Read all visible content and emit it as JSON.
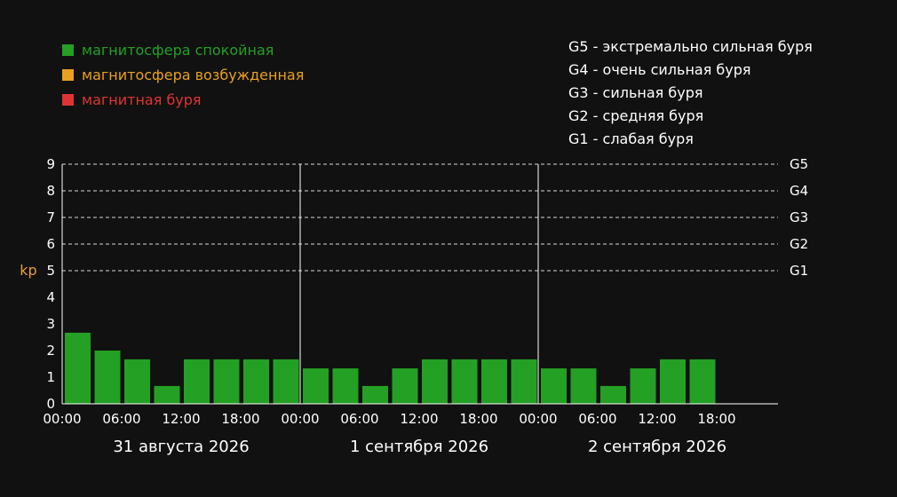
{
  "legend": [
    {
      "label": "магнитосфера спокойная",
      "color": "#24a024"
    },
    {
      "label": "магнитосфера возбужденная",
      "color": "#e8a020"
    },
    {
      "label": "магнитная буря",
      "color": "#e03434"
    }
  ],
  "storm_levels": [
    "G5 - экстремально сильная буря",
    "G4 - очень сильная буря",
    "G3 - сильная буря",
    "G2 - средняя буря",
    "G1 - слабая буря"
  ],
  "chart_data": {
    "type": "bar",
    "ylabel": "kp",
    "ylim": [
      0,
      9
    ],
    "yticks": [
      "0",
      "1",
      "2",
      "3",
      "4",
      "5",
      "6",
      "7",
      "8",
      "9"
    ],
    "g_levels": [
      {
        "label": "G5",
        "value": 9
      },
      {
        "label": "G4",
        "value": 8
      },
      {
        "label": "G3",
        "value": 7
      },
      {
        "label": "G2",
        "value": 6
      },
      {
        "label": "G1",
        "value": 5
      }
    ],
    "x_tick_labels": [
      "00:00",
      "06:00",
      "12:00",
      "18:00"
    ],
    "days": [
      {
        "label": "31 августа 2026",
        "values": [
          2.67,
          2.0,
          1.67,
          0.67,
          1.67,
          1.67,
          1.67,
          1.67
        ]
      },
      {
        "label": "1 сентября 2026",
        "values": [
          1.33,
          1.33,
          0.67,
          1.33,
          1.67,
          1.67,
          1.67,
          1.67
        ]
      },
      {
        "label": "2 сентября 2026",
        "values": [
          1.33,
          1.33,
          0.67,
          1.33,
          1.67,
          1.67
        ]
      }
    ],
    "bar_color": "#24a024",
    "label_color": "#e8a030",
    "text_color": "#ffffff"
  }
}
